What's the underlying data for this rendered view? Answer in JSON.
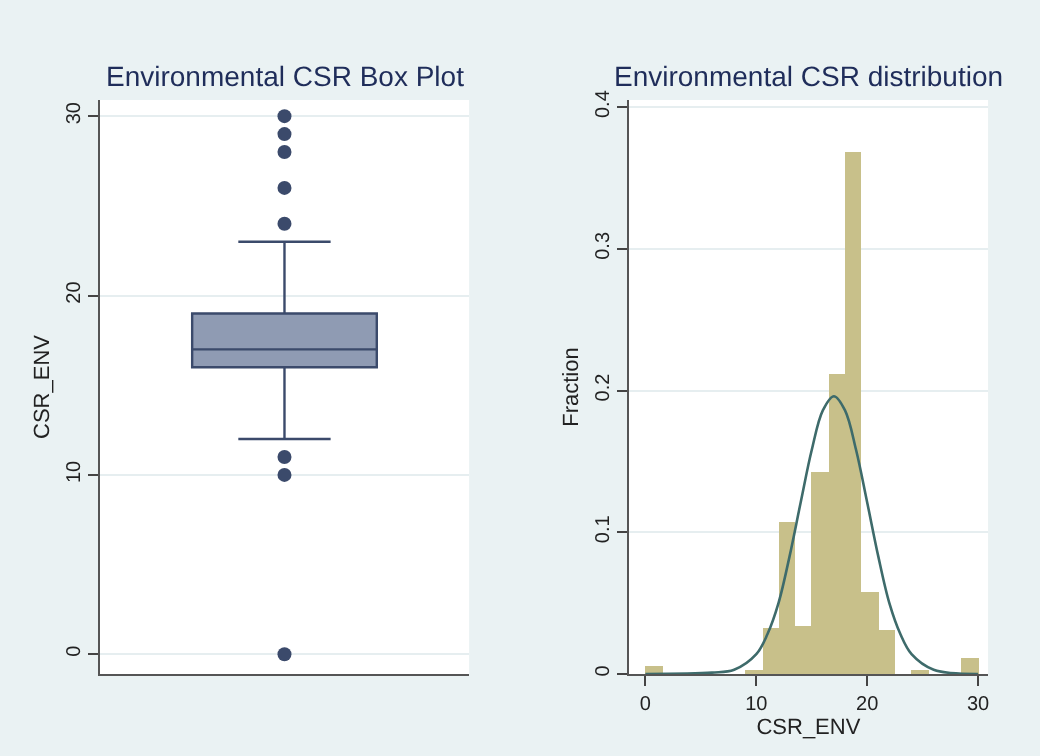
{
  "chart_data": [
    {
      "type": "box",
      "title": "Environmental CSR Box Plot",
      "ylabel": "CSR_ENV",
      "categories": [
        null
      ],
      "ylim": [
        -1.1,
        30.9
      ],
      "yticks": [
        0,
        10,
        20,
        30
      ],
      "grid": "y",
      "tick_labels": "y",
      "color": "#8f9bb3",
      "boxes": [
        {
          "low": 12,
          "q1": 16,
          "median": 17,
          "q3": 19,
          "high": 23,
          "outliers": [
            0,
            10,
            11,
            24,
            26,
            28,
            29,
            30
          ]
        }
      ]
    },
    {
      "type": "histogram",
      "title": "Environmental CSR distribution",
      "xlabel": "CSR_ENV",
      "ylabel": "Fraction",
      "xlim": [
        -1.5,
        30.9
      ],
      "xticks": [
        0,
        10,
        20,
        30
      ],
      "ylim": [
        0,
        0.405
      ],
      "yticks": [
        0,
        0.1,
        0.2,
        0.3,
        0.4
      ],
      "grid": "y",
      "series": [
        {
          "type": "histogram",
          "color": "#c8c08a",
          "bins": [
            0,
            1.5,
            3,
            4.5,
            6,
            7.5,
            9,
            10.5,
            12,
            13.5,
            15,
            16.5,
            18,
            19.5,
            21,
            22.5,
            24,
            25.5,
            27,
            28.5,
            30
          ],
          "values": [
            0.005,
            0,
            0,
            0,
            0,
            0,
            0.003,
            0.032,
            0.107,
            0.034,
            0.142,
            0.212,
            0.368,
            0.058,
            0.031,
            0,
            0.002,
            0,
            0,
            0.011
          ]
        },
        {
          "type": "line",
          "color": "#3e6b6b",
          "x": [
            0,
            6,
            8,
            10,
            11,
            12,
            13,
            14,
            15,
            16,
            17,
            18,
            19,
            20,
            21,
            22,
            23,
            24,
            26,
            30
          ],
          "values": [
            0,
            0.001,
            0.003,
            0.014,
            0.028,
            0.05,
            0.083,
            0.121,
            0.158,
            0.186,
            0.196,
            0.186,
            0.158,
            0.121,
            0.083,
            0.05,
            0.028,
            0.014,
            0.003,
            0
          ]
        }
      ]
    }
  ]
}
